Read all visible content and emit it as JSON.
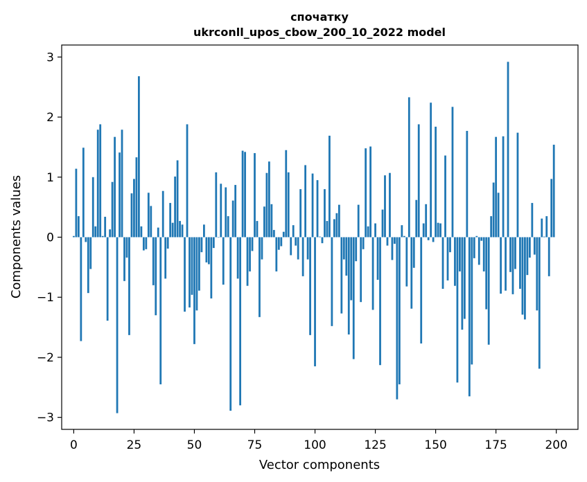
{
  "chart_data": {
    "type": "bar",
    "title_line1": "спочатку",
    "title_line2": "ukrconll_upos_cbow_200_10_2022 model",
    "xlabel": "Vector components",
    "ylabel": "Components values",
    "xlim": [
      -5,
      209
    ],
    "ylim": [
      -3.2,
      3.2
    ],
    "xticks": [
      0,
      25,
      50,
      75,
      100,
      125,
      150,
      175,
      200
    ],
    "yticks": [
      -3,
      -2,
      -1,
      0,
      1,
      2,
      3
    ],
    "xtick_labels": [
      "0",
      "25",
      "50",
      "75",
      "100",
      "125",
      "150",
      "175",
      "200"
    ],
    "ytick_labels": [
      "−3",
      "−2",
      "−1",
      "0",
      "1",
      "2",
      "3"
    ],
    "bar_color": "#1f77b4",
    "grid": false,
    "legend": "none",
    "values": [
      0.02,
      1.14,
      0.35,
      -1.73,
      1.49,
      -0.08,
      -0.93,
      -0.53,
      1.0,
      0.18,
      1.79,
      1.88,
      0.02,
      0.34,
      -1.39,
      0.13,
      0.92,
      1.67,
      -2.93,
      1.41,
      1.79,
      -0.73,
      -0.34,
      -1.63,
      0.73,
      0.97,
      1.33,
      2.68,
      0.18,
      -0.22,
      -0.2,
      0.74,
      0.52,
      -0.8,
      -1.3,
      0.16,
      -2.45,
      0.77,
      -0.69,
      -0.19,
      0.57,
      0.24,
      1.01,
      1.28,
      0.27,
      0.21,
      -1.24,
      1.88,
      -1.17,
      -0.96,
      -1.78,
      -1.22,
      -0.89,
      -0.25,
      0.21,
      -0.42,
      -0.45,
      -1.02,
      -0.18,
      1.08,
      0.0,
      0.89,
      -0.79,
      0.83,
      0.35,
      -2.89,
      0.61,
      0.87,
      -0.69,
      -2.8,
      1.44,
      1.42,
      -0.81,
      -0.57,
      -0.23,
      1.4,
      0.27,
      -1.33,
      -0.37,
      0.51,
      1.07,
      1.26,
      0.55,
      0.12,
      -0.57,
      -0.21,
      -0.15,
      0.09,
      1.45,
      1.08,
      -0.3,
      0.2,
      -0.14,
      -0.37,
      0.8,
      -0.65,
      1.2,
      -0.37,
      -1.63,
      1.06,
      -2.15,
      0.95,
      0.01,
      -0.1,
      0.8,
      0.27,
      1.69,
      -1.48,
      0.3,
      0.4,
      0.54,
      -1.27,
      -0.37,
      -0.64,
      -1.62,
      -1.05,
      -2.03,
      -0.4,
      0.54,
      -1.08,
      -0.2,
      1.48,
      0.18,
      1.51,
      -1.21,
      0.23,
      -0.71,
      -2.13,
      0.46,
      1.03,
      -0.14,
      1.07,
      -0.38,
      -0.11,
      -2.7,
      -2.45,
      0.2,
      0.02,
      -0.82,
      2.33,
      -1.19,
      -0.51,
      0.62,
      1.88,
      -1.77,
      0.23,
      0.55,
      -0.05,
      2.24,
      -0.08,
      1.84,
      0.24,
      0.23,
      -0.86,
      1.36,
      -0.72,
      -0.25,
      2.17,
      -0.81,
      -2.42,
      -0.57,
      -1.54,
      -1.36,
      1.77,
      -2.65,
      -2.12,
      -0.35,
      0.02,
      -0.46,
      -0.06,
      -0.57,
      -1.2,
      -1.79,
      0.35,
      0.91,
      1.67,
      0.74,
      -0.94,
      1.68,
      -0.89,
      2.92,
      -0.58,
      -0.95,
      -0.53,
      1.74,
      -0.86,
      -1.29,
      -1.37,
      -0.63,
      -0.34,
      0.57,
      -0.29,
      -1.22,
      -2.19,
      0.31,
      0.01,
      0.35,
      -0.65,
      0.97,
      1.54
    ]
  }
}
